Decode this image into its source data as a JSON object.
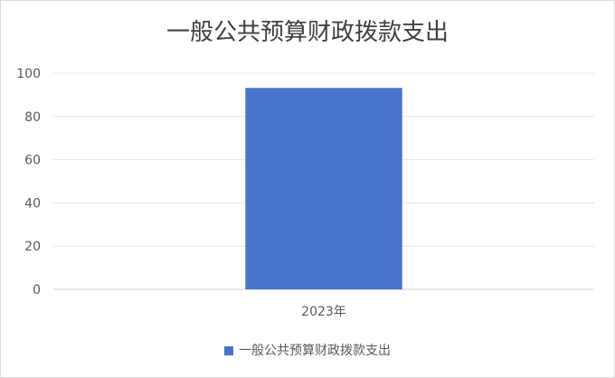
{
  "chart_data": {
    "type": "bar",
    "title": "一般公共预算财政拨款支出",
    "categories": [
      "2023年"
    ],
    "series": [
      {
        "name": "一般公共预算财政拨款支出",
        "values": [
          93.2
        ],
        "color": "#4874CB"
      }
    ],
    "ylim": [
      0,
      100
    ],
    "yticks": [
      0,
      20,
      40,
      60,
      80,
      100
    ],
    "grid": true,
    "legend": "bottom",
    "xlabel": "",
    "ylabel": ""
  }
}
